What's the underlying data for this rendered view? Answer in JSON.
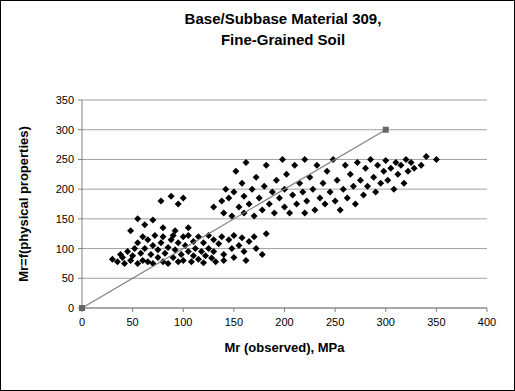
{
  "chart_data": {
    "type": "scatter",
    "title": "Base/Subbase Material 309, Fine-Grained Soil",
    "x_label": "Mr (observed), MPa",
    "y_label": "Mr=f(physical properties)",
    "xlim": [
      0,
      400
    ],
    "ylim": [
      0,
      350
    ],
    "xticks": [
      0,
      50,
      100,
      150,
      200,
      250,
      300,
      350,
      400
    ],
    "yticks": [
      0,
      50,
      100,
      150,
      200,
      250,
      300,
      350
    ],
    "grid": true,
    "series": [
      {
        "type": "scatter",
        "color": "#000000",
        "marker": "diamond",
        "x": [
          30,
          35,
          38,
          40,
          42,
          45,
          48,
          50,
          52,
          55,
          55,
          58,
          60,
          60,
          62,
          65,
          65,
          68,
          70,
          70,
          72,
          75,
          75,
          78,
          80,
          80,
          82,
          85,
          85,
          88,
          90,
          90,
          92,
          95,
          95,
          98,
          100,
          100,
          102,
          105,
          105,
          108,
          110,
          110,
          112,
          115,
          115,
          118,
          120,
          120,
          122,
          125,
          125,
          128,
          130,
          130,
          132,
          135,
          138,
          140,
          140,
          145,
          148,
          150,
          150,
          155,
          158,
          160,
          162,
          165,
          170,
          172,
          178,
          182,
          48,
          55,
          62,
          70,
          80,
          92,
          105,
          78,
          88,
          95,
          100,
          130,
          138,
          140,
          142,
          145,
          148,
          150,
          152,
          155,
          158,
          160,
          160,
          162,
          165,
          168,
          170,
          172,
          175,
          178,
          180,
          182,
          185,
          188,
          190,
          192,
          195,
          198,
          200,
          200,
          202,
          205,
          208,
          210,
          212,
          215,
          218,
          220,
          220,
          222,
          225,
          228,
          230,
          232,
          235,
          238,
          240,
          242,
          245,
          248,
          250,
          252,
          255,
          258,
          260,
          262,
          265,
          268,
          270,
          272,
          275,
          278,
          280,
          282,
          285,
          288,
          290,
          292,
          295,
          298,
          300,
          302,
          305,
          308,
          310,
          312,
          315,
          318,
          320,
          322,
          325,
          328,
          335,
          340,
          350
        ],
        "values": [
          82,
          78,
          90,
          85,
          75,
          95,
          80,
          88,
          100,
          75,
          110,
          92,
          80,
          120,
          100,
          78,
          115,
          90,
          105,
          75,
          122,
          85,
          98,
          110,
          78,
          120,
          92,
          102,
          75,
          115,
          85,
          122,
          98,
          78,
          110,
          90,
          120,
          80,
          105,
          95,
          122,
          78,
          112,
          88,
          100,
          120,
          82,
          95,
          110,
          76,
          88,
          122,
          100,
          84,
          115,
          95,
          78,
          108,
          120,
          90,
          80,
          115,
          100,
          122,
          85,
          105,
          118,
          95,
          80,
          112,
          120,
          100,
          90,
          125,
          130,
          150,
          140,
          148,
          135,
          130,
          135,
          180,
          188,
          175,
          185,
          170,
          180,
          160,
          200,
          185,
          155,
          195,
          230,
          170,
          210,
          160,
          188,
          245,
          175,
          200,
          155,
          220,
          185,
          165,
          205,
          240,
          175,
          195,
          160,
          215,
          185,
          250,
          170,
          200,
          225,
          160,
          190,
          240,
          175,
          210,
          195,
          160,
          250,
          180,
          220,
          200,
          165,
          240,
          185,
          210,
          175,
          230,
          195,
          250,
          180,
          215,
          165,
          200,
          240,
          185,
          225,
          205,
          175,
          245,
          215,
          190,
          235,
          205,
          250,
          220,
          195,
          240,
          210,
          230,
          248,
          215,
          235,
          200,
          245,
          225,
          240,
          210,
          250,
          230,
          245,
          235,
          240,
          255,
          250
        ]
      },
      {
        "type": "line",
        "color": "#808080",
        "marker": "square",
        "x": [
          0,
          300
        ],
        "values": [
          0,
          300
        ]
      }
    ]
  }
}
